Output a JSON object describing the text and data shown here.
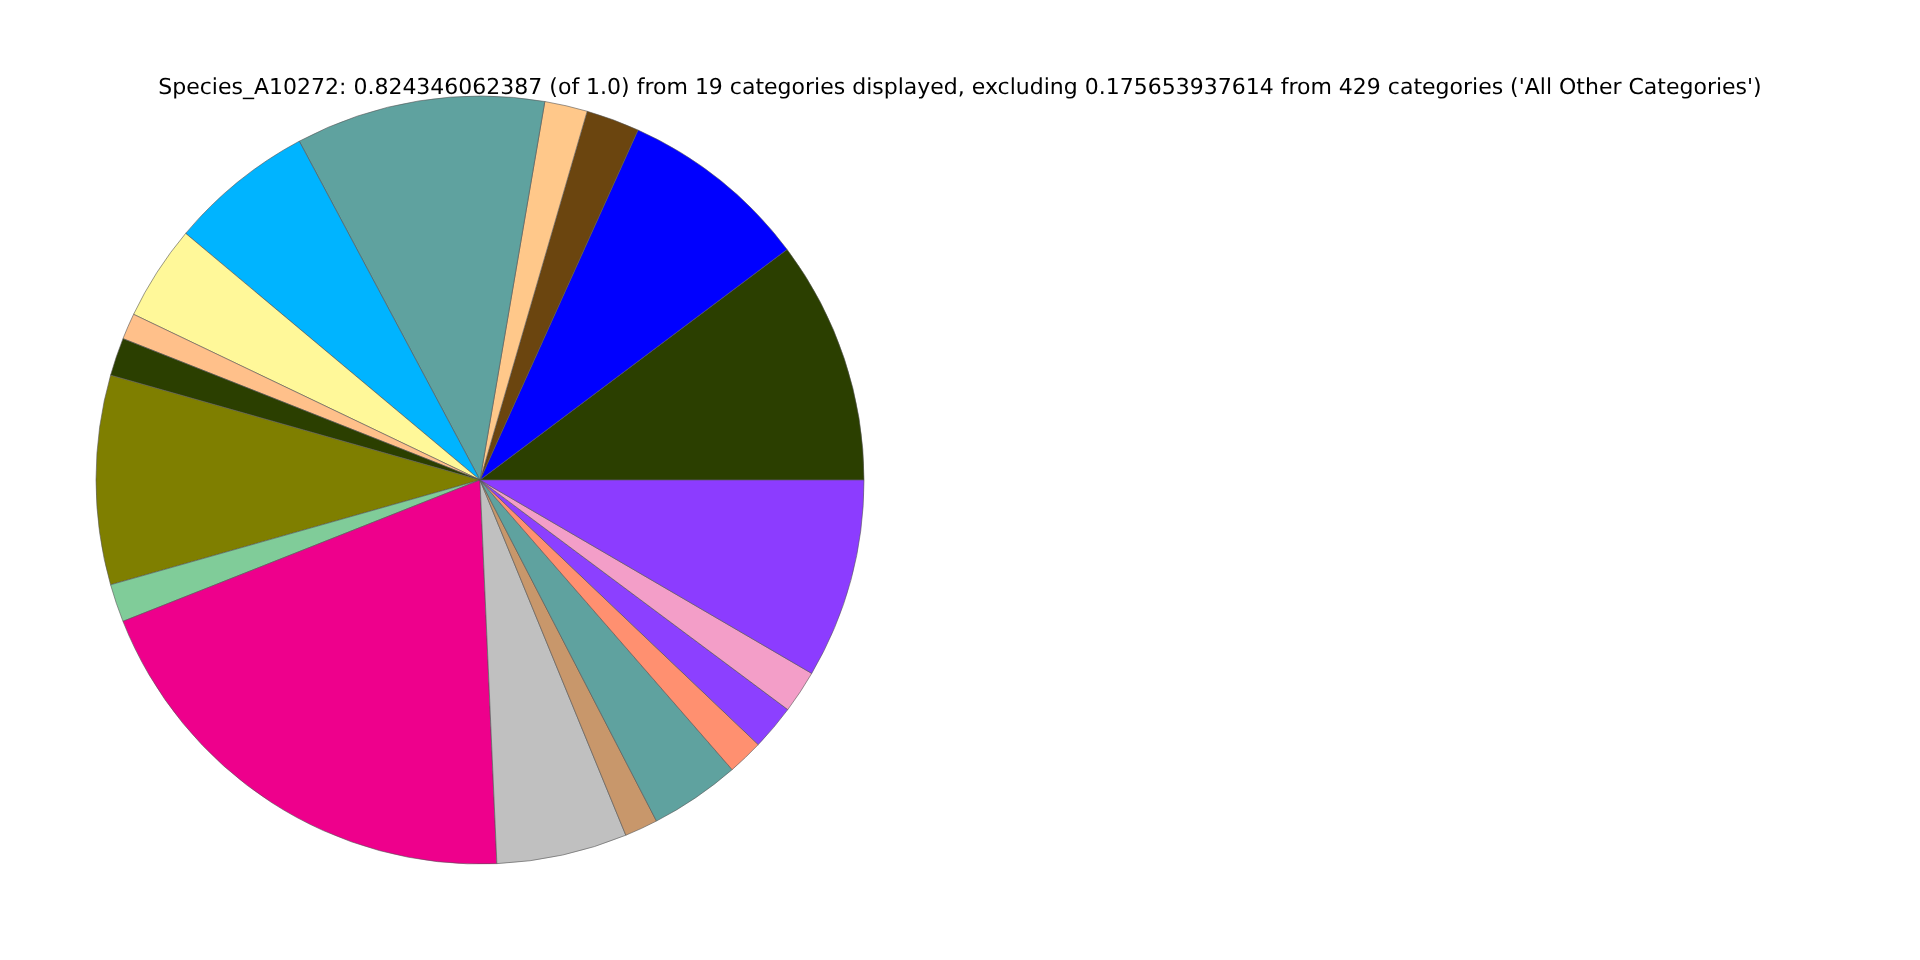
{
  "chart_data": {
    "type": "pie",
    "title": "Species_A10272: 0.824346062387 (of 1.0) from 19 categories displayed, excluding 0.175653937614 from 429 categories ('All Other Categories')",
    "categories": [
      null,
      null,
      null,
      null,
      null,
      null,
      null,
      null,
      null,
      null,
      null,
      null,
      null,
      null,
      null,
      null,
      null,
      null,
      null
    ],
    "values": [
      10.25,
      8.0,
      2.25,
      1.8,
      10.5,
      6.1,
      4.0,
      1.1,
      1.6,
      8.8,
      1.6,
      19.7,
      5.5,
      1.4,
      3.8,
      1.5,
      1.9,
      1.8,
      8.4
    ],
    "colors": [
      "#2b3f00",
      "#0000ff",
      "#6b450f",
      "#ffc88a",
      "#5fa29f",
      "#00b4ff",
      "#fff899",
      "#ffc08a",
      "#2b3f00",
      "#7f7f00",
      "#80cc99",
      "#ee008c",
      "#c0c0c0",
      "#c8976b",
      "#5fa29f",
      "#ff9070",
      "#8c40ff",
      "#f39ec8",
      "#8c3cff"
    ]
  }
}
